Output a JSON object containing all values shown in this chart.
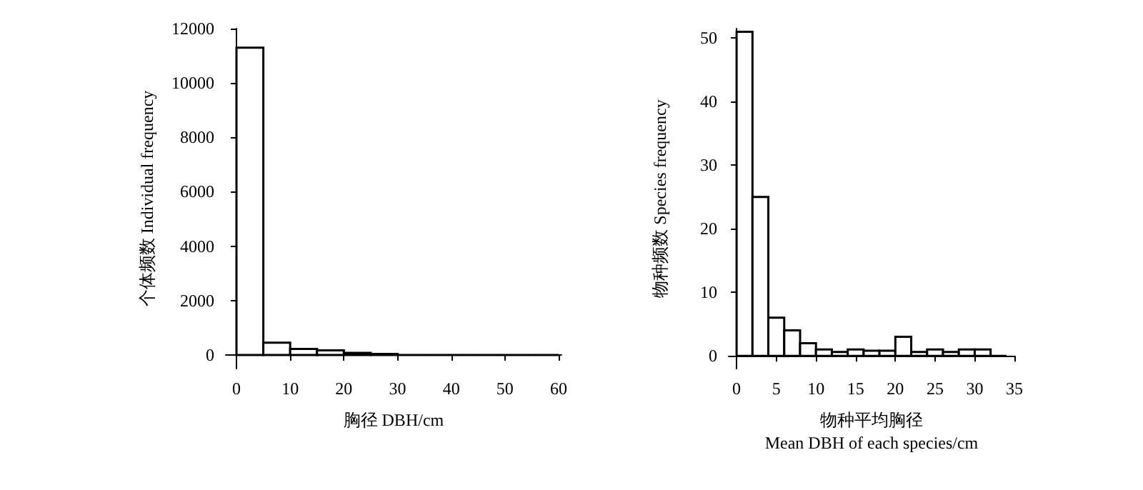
{
  "chart_data": [
    {
      "type": "histogram",
      "xlabel": "胸径 DBH/cm",
      "ylabel": "个体频数 Individual frequency",
      "bins": [
        0,
        5,
        10,
        15,
        20,
        25,
        30,
        35,
        40,
        45,
        50,
        55,
        60
      ],
      "values": [
        11300,
        450,
        220,
        170,
        80,
        40,
        0,
        0,
        0,
        0,
        0,
        0
      ],
      "colors": [
        "#ffffff",
        "#ffffff",
        "#ffffff",
        "#ffffff",
        "#ffffff",
        "#ffffff",
        "#000000",
        "#000000",
        "#000000",
        "#000000",
        "#000000",
        "#000000"
      ],
      "xlim": [
        -2,
        60.5
      ],
      "ylim": [
        -500,
        12000
      ],
      "xticks": [
        0,
        10,
        20,
        30,
        40,
        50,
        60
      ],
      "yticks": [
        0,
        2000,
        4000,
        6000,
        8000,
        10000,
        12000
      ],
      "grid": false
    },
    {
      "type": "histogram",
      "xlabel": "物种平均胸径\nMean DBH of each species/cm",
      "ylabel": "物种频数 Species frequency",
      "bins": [
        0,
        2,
        4,
        6,
        8,
        10,
        12,
        14,
        16,
        18,
        20,
        22,
        24,
        26,
        28,
        30,
        32,
        34
      ],
      "values": [
        51,
        25,
        6,
        4,
        2,
        1,
        0.6,
        1,
        0.8,
        0.8,
        3,
        0.6,
        1,
        0.6,
        1,
        1,
        0
      ],
      "colors": [
        "#ffffff",
        "#ffffff",
        "#ffffff",
        "#ffffff",
        "#ffffff",
        "#ffffff",
        "#ffffff",
        "#ffffff",
        "#ffffff",
        "#ffffff",
        "#ffffff",
        "#ffffff",
        "#ffffff",
        "#ffffff",
        "#ffffff",
        "#ffffff",
        "#000000"
      ],
      "xlim": [
        -1,
        35
      ],
      "ylim": [
        -2,
        51.5
      ],
      "xticks": [
        0,
        5,
        10,
        15,
        20,
        25,
        30,
        35
      ],
      "yticks": [
        0,
        10,
        20,
        30,
        40,
        50
      ],
      "grid": false
    }
  ]
}
